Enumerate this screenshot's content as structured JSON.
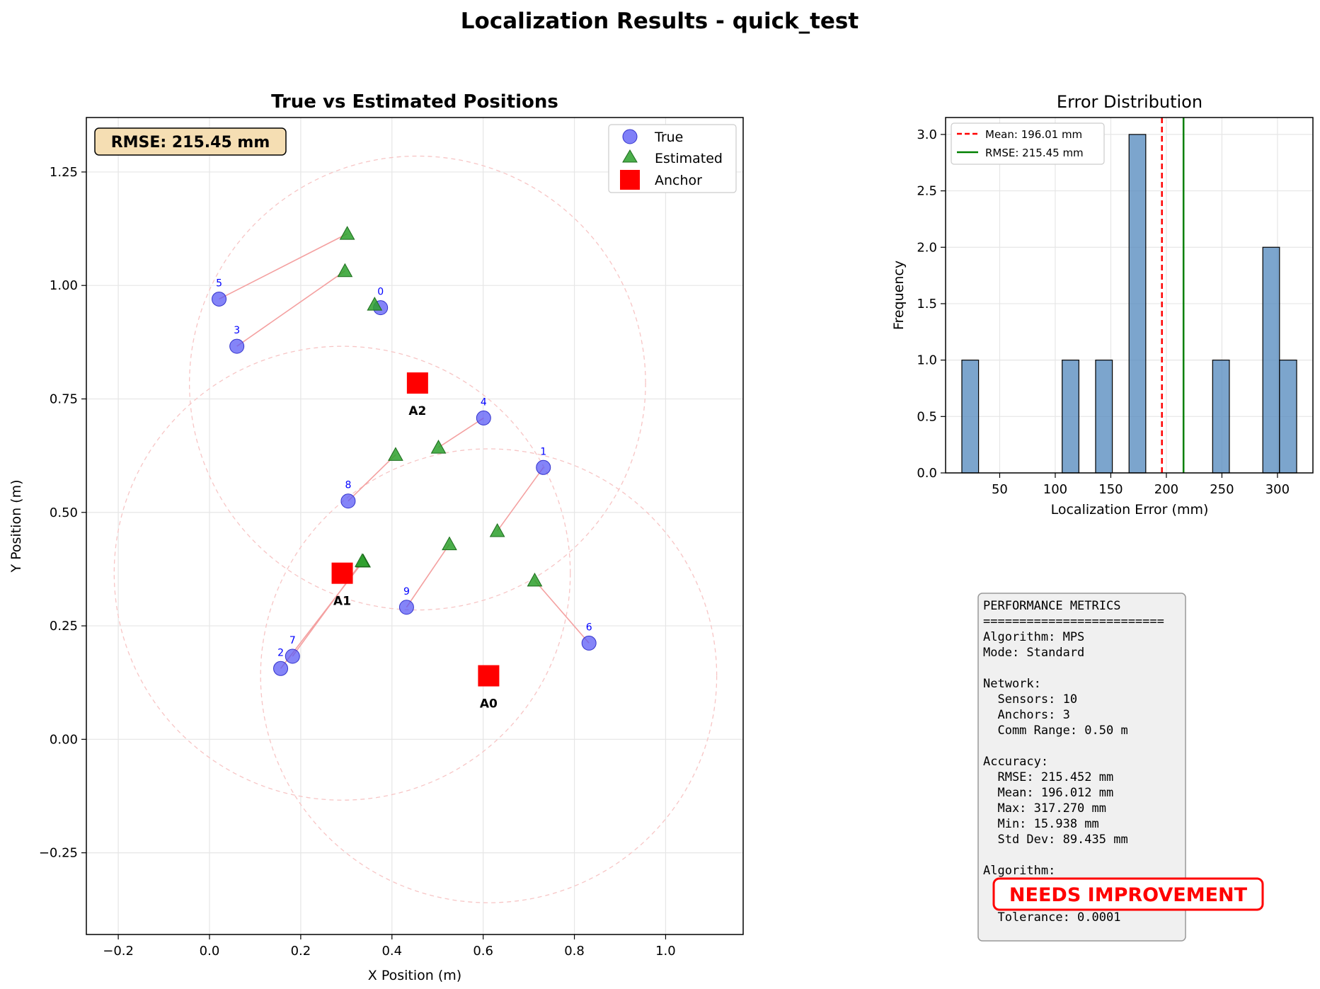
{
  "suptitle": "Localization Results - quick_test",
  "scatter": {
    "title": "True vs Estimated Positions",
    "xlabel": "X Position (m)",
    "ylabel": "Y Position (m)",
    "rmse_box": "RMSE: 215.45 mm",
    "legend": {
      "true": "True",
      "estimated": "Estimated",
      "anchor": "Anchor"
    }
  },
  "histogram": {
    "title": "Error Distribution",
    "xlabel": "Localization Error (mm)",
    "ylabel": "Frequency",
    "legend": {
      "mean": "Mean: 196.01 mm",
      "rmse": "RMSE: 215.45 mm"
    }
  },
  "metrics": {
    "lines": [
      "PERFORMANCE METRICS",
      "=========================",
      "Algorithm: MPS",
      "Mode: Standard",
      "",
      "Network:",
      "  Sensors: 10",
      "  Anchors: 3",
      "  Comm Range: 0.50 m",
      "",
      "Accuracy:",
      "  RMSE: 215.452 mm",
      "  Mean: 196.012 mm",
      "  Max: 317.270 mm",
      "  Min: 15.938 mm",
      "  Std Dev: 89.435 mm",
      "",
      "Algorithm:",
      "",
      "",
      "  Tolerance: 0.0001"
    ],
    "badge": "NEEDS IMPROVEMENT"
  },
  "colors": {
    "true": "#5555f5",
    "estimated": "#2ca02c",
    "anchor": "#ff0000",
    "link": "#f4a0a0",
    "range_circle": "#f7c5c5",
    "hist_bar": "#5b8fc0",
    "mean_line": "#ff0000",
    "rmse_line": "#008000",
    "rmse_box_bg": "#f5deb3",
    "metrics_bg": "#f0f0f0",
    "badge": "#ff0000",
    "sensor_label": "#0000ff"
  },
  "chart_data": [
    {
      "type": "scatter",
      "title": "True vs Estimated Positions",
      "xlabel": "X Position (m)",
      "ylabel": "Y Position (m)",
      "xlim": [
        -0.27,
        1.17
      ],
      "ylim": [
        -0.43,
        1.37
      ],
      "xticks": [
        -0.2,
        0.0,
        0.2,
        0.4,
        0.6,
        0.8,
        1.0
      ],
      "yticks": [
        -0.25,
        0.0,
        0.25,
        0.5,
        0.75,
        1.0,
        1.25
      ],
      "xtick_labels": [
        "−0.2",
        "0.0",
        "0.2",
        "0.4",
        "0.6",
        "0.8",
        "1.0"
      ],
      "ytick_labels": [
        "−0.25",
        "0.00",
        "0.25",
        "0.50",
        "0.75",
        "1.00",
        "1.25"
      ],
      "grid": true,
      "legend_position": "top-right",
      "sensors": [
        {
          "id": "0",
          "true": [
            0.375,
            0.951
          ],
          "estimated": [
            0.362,
            0.958
          ]
        },
        {
          "id": "1",
          "true": [
            0.732,
            0.599
          ],
          "estimated": [
            0.631,
            0.459
          ]
        },
        {
          "id": "2",
          "true": [
            0.156,
            0.156
          ],
          "estimated": [
            0.337,
            0.392
          ]
        },
        {
          "id": "3",
          "true": [
            0.06,
            0.866
          ],
          "estimated": [
            0.297,
            1.032
          ]
        },
        {
          "id": "4",
          "true": [
            0.601,
            0.708
          ],
          "estimated": [
            0.502,
            0.643
          ]
        },
        {
          "id": "5",
          "true": [
            0.021,
            0.97
          ],
          "estimated": [
            0.302,
            1.114
          ]
        },
        {
          "id": "6",
          "true": [
            0.832,
            0.212
          ],
          "estimated": [
            0.713,
            0.35
          ]
        },
        {
          "id": "7",
          "true": [
            0.182,
            0.183
          ],
          "estimated": [
            0.335,
            0.393
          ]
        },
        {
          "id": "8",
          "true": [
            0.304,
            0.525
          ],
          "estimated": [
            0.408,
            0.627
          ]
        },
        {
          "id": "9",
          "true": [
            0.432,
            0.291
          ],
          "estimated": [
            0.526,
            0.43
          ]
        }
      ],
      "anchors": [
        {
          "label": "A0",
          "pos": [
            0.612,
            0.14
          ]
        },
        {
          "label": "A1",
          "pos": [
            0.291,
            0.366
          ]
        },
        {
          "label": "A2",
          "pos": [
            0.456,
            0.785
          ]
        }
      ],
      "comm_range": 0.5
    },
    {
      "type": "bar",
      "title": "Error Distribution",
      "xlabel": "Localization Error (mm)",
      "ylabel": "Frequency",
      "xlim": [
        1.3,
        331.9
      ],
      "ylim": [
        0,
        3.15
      ],
      "xticks": [
        50,
        100,
        150,
        200,
        250,
        300
      ],
      "yticks": [
        0.0,
        0.5,
        1.0,
        1.5,
        2.0,
        2.5,
        3.0
      ],
      "xtick_labels": [
        "50",
        "100",
        "150",
        "200",
        "250",
        "300"
      ],
      "ytick_labels": [
        "0.0",
        "0.5",
        "1.0",
        "1.5",
        "2.0",
        "2.5",
        "3.0"
      ],
      "bin_edges": [
        15.938,
        30.985,
        46.032,
        61.08,
        76.127,
        91.174,
        106.221,
        121.268,
        136.316,
        151.363,
        166.41,
        181.457,
        196.504,
        211.551,
        226.598,
        241.646,
        256.693,
        271.74,
        286.787,
        301.834,
        317.27
      ],
      "counts": [
        1,
        0,
        0,
        0,
        0,
        0,
        1,
        0,
        1,
        0,
        3,
        0,
        0,
        0,
        0,
        1,
        0,
        0,
        2,
        1
      ],
      "mean": 196.01,
      "rmse": 215.45,
      "grid": true,
      "legend_position": "top-left"
    }
  ]
}
